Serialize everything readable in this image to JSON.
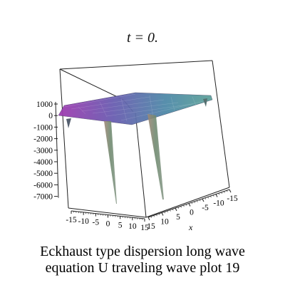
{
  "title": "t = 0.",
  "caption": {
    "line1": "Eckhaust type dispersion long wave",
    "line2": "equation U traveling wave plot 19"
  },
  "chart_data": {
    "type": "surface3d",
    "x_axis": {
      "label": "x",
      "ticks": [
        "15",
        "10",
        "5",
        "0",
        "-5",
        "-10",
        "-15"
      ]
    },
    "y_axis": {
      "label": "",
      "ticks": [
        "-15",
        "-10",
        "-5",
        "0",
        "5",
        "10",
        "15"
      ]
    },
    "z_axis": {
      "label": "",
      "ticks": [
        "1000",
        "0",
        "-1000",
        "-2000",
        "-3000",
        "-4000",
        "-5000",
        "-6000",
        "-7000"
      ]
    },
    "z_range": [
      -7500,
      1200
    ],
    "surface": {
      "baseline_value": 0,
      "spikes": [
        {
          "description": "left downward spike",
          "min_value": -7500
        },
        {
          "description": "right downward spike",
          "min_value": -7400
        }
      ]
    },
    "colors": {
      "top": "#4a7fa8",
      "left": "#8a2fa0",
      "spike": "#7a8a70",
      "box": "#222222"
    }
  }
}
